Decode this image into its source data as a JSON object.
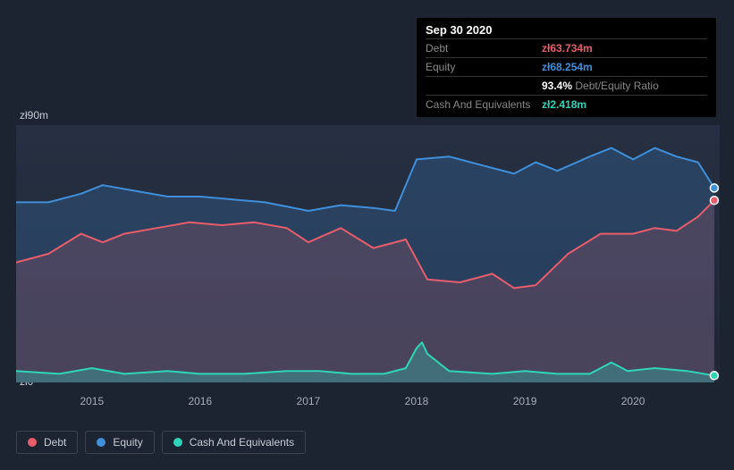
{
  "tooltip": {
    "date": "Sep 30 2020",
    "rows": [
      {
        "label": "Debt",
        "value": "zł63.734m",
        "color": "#e85d6c"
      },
      {
        "label": "Equity",
        "value": "zł68.254m",
        "color": "#3f8fdb"
      },
      {
        "label": "",
        "value": "93.4%",
        "sub": " Debt/Equity Ratio",
        "color": "#ffffff"
      },
      {
        "label": "Cash And Equivalents",
        "value": "zł2.418m",
        "color": "#2fd5b9"
      }
    ]
  },
  "chart": {
    "type": "area",
    "ylim": [
      0,
      90
    ],
    "y_top_label": "zł90m",
    "y_bottom_label": "zł0",
    "x_years": [
      2015,
      2016,
      2017,
      2018,
      2019,
      2020
    ],
    "x_range": [
      2014.3,
      2020.8
    ],
    "background_top": "#263042",
    "background_bottom": "#1f2735",
    "series": [
      {
        "name": "Equity",
        "stroke": "#3f8fdb",
        "fill": "rgba(63,143,219,0.22)",
        "stroke_width": 2,
        "points": [
          [
            2014.3,
            63
          ],
          [
            2014.6,
            63
          ],
          [
            2014.9,
            66
          ],
          [
            2015.1,
            69
          ],
          [
            2015.4,
            67
          ],
          [
            2015.7,
            65
          ],
          [
            2016.0,
            65
          ],
          [
            2016.3,
            64
          ],
          [
            2016.6,
            63
          ],
          [
            2017.0,
            60
          ],
          [
            2017.3,
            62
          ],
          [
            2017.6,
            61
          ],
          [
            2017.8,
            60
          ],
          [
            2018.0,
            78
          ],
          [
            2018.3,
            79
          ],
          [
            2018.6,
            76
          ],
          [
            2018.9,
            73
          ],
          [
            2019.1,
            77
          ],
          [
            2019.3,
            74
          ],
          [
            2019.6,
            79
          ],
          [
            2019.8,
            82
          ],
          [
            2020.0,
            78
          ],
          [
            2020.2,
            82
          ],
          [
            2020.4,
            79
          ],
          [
            2020.6,
            77
          ],
          [
            2020.75,
            68
          ]
        ],
        "end_marker": true
      },
      {
        "name": "Debt",
        "stroke": "#e85d6c",
        "fill": "rgba(232,93,108,0.18)",
        "stroke_width": 2,
        "points": [
          [
            2014.3,
            42
          ],
          [
            2014.6,
            45
          ],
          [
            2014.9,
            52
          ],
          [
            2015.1,
            49
          ],
          [
            2015.3,
            52
          ],
          [
            2015.6,
            54
          ],
          [
            2015.9,
            56
          ],
          [
            2016.2,
            55
          ],
          [
            2016.5,
            56
          ],
          [
            2016.8,
            54
          ],
          [
            2017.0,
            49
          ],
          [
            2017.3,
            54
          ],
          [
            2017.6,
            47
          ],
          [
            2017.9,
            50
          ],
          [
            2018.1,
            36
          ],
          [
            2018.4,
            35
          ],
          [
            2018.7,
            38
          ],
          [
            2018.9,
            33
          ],
          [
            2019.1,
            34
          ],
          [
            2019.4,
            45
          ],
          [
            2019.7,
            52
          ],
          [
            2020.0,
            52
          ],
          [
            2020.2,
            54
          ],
          [
            2020.4,
            53
          ],
          [
            2020.6,
            58
          ],
          [
            2020.75,
            63.7
          ]
        ],
        "end_marker": true
      },
      {
        "name": "Cash And Equivalents",
        "stroke": "#2fd5b9",
        "fill": "rgba(47,213,185,0.30)",
        "stroke_width": 2,
        "points": [
          [
            2014.3,
            4
          ],
          [
            2014.7,
            3
          ],
          [
            2015.0,
            5
          ],
          [
            2015.3,
            3
          ],
          [
            2015.7,
            4
          ],
          [
            2016.0,
            3
          ],
          [
            2016.4,
            3
          ],
          [
            2016.8,
            4
          ],
          [
            2017.1,
            4
          ],
          [
            2017.4,
            3
          ],
          [
            2017.7,
            3
          ],
          [
            2017.9,
            5
          ],
          [
            2018.0,
            12
          ],
          [
            2018.05,
            14
          ],
          [
            2018.1,
            10
          ],
          [
            2018.3,
            4
          ],
          [
            2018.7,
            3
          ],
          [
            2019.0,
            4
          ],
          [
            2019.3,
            3
          ],
          [
            2019.6,
            3
          ],
          [
            2019.8,
            7
          ],
          [
            2019.95,
            4
          ],
          [
            2020.2,
            5
          ],
          [
            2020.5,
            4
          ],
          [
            2020.75,
            2.4
          ]
        ],
        "end_marker": true
      }
    ]
  },
  "legend": [
    {
      "label": "Debt",
      "color": "#e85d6c"
    },
    {
      "label": "Equity",
      "color": "#3f8fdb"
    },
    {
      "label": "Cash And Equivalents",
      "color": "#2fd5b9"
    }
  ]
}
